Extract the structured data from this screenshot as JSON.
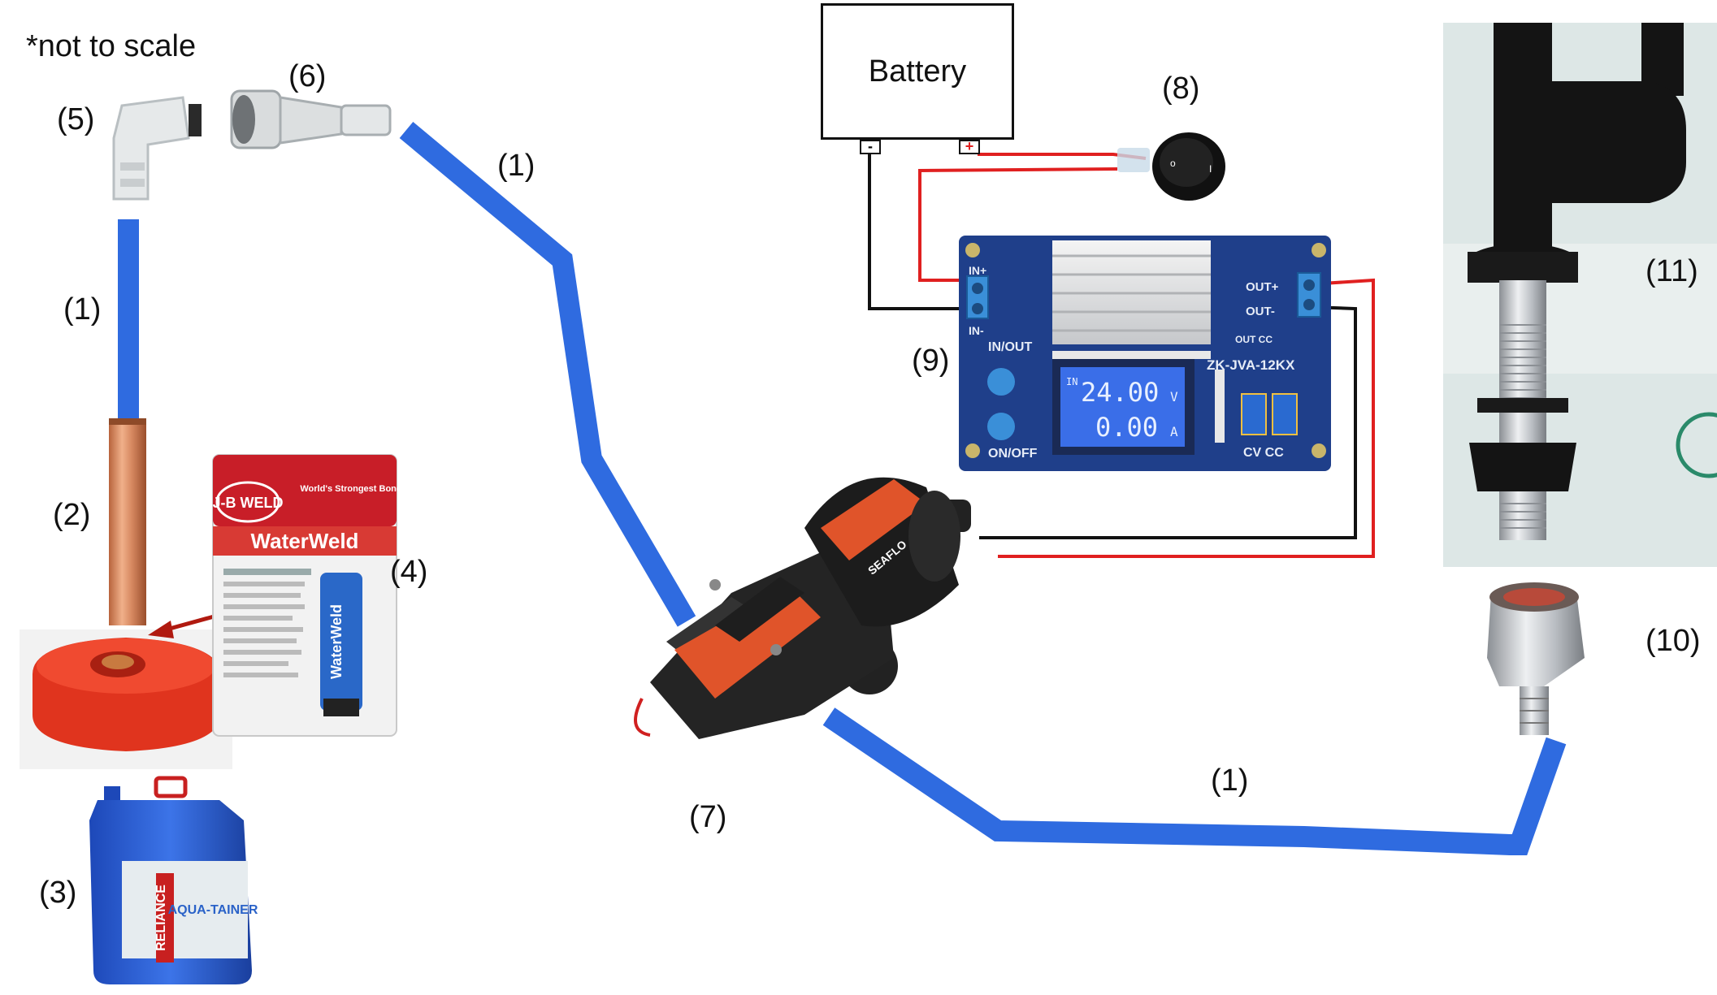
{
  "note": "*not to scale",
  "battery": {
    "label": "Battery",
    "neg_terminal": "-",
    "pos_terminal": "+"
  },
  "labels": {
    "tube_top_right": "(1)",
    "tube_left": "(1)",
    "tube_bottom": "(1)",
    "copper_pipe": "(2)",
    "water_container": "(3)",
    "epoxy": "(4)",
    "elbow_fitting": "(5)",
    "quick_connect": "(6)",
    "pump": "(7)",
    "switch": "(8)",
    "converter": "(9)",
    "faucet_adapter": "(10)",
    "faucet": "(11)"
  },
  "epoxy_package": {
    "brand": "J-B WELD",
    "product": "WaterWeld",
    "tagline": "World's Strongest Bond",
    "tube_text": "WaterWeld"
  },
  "container": {
    "brand": "RELIANCE",
    "product": "AQUA-TAINER"
  },
  "pump_brand": "SEAFLO",
  "converter": {
    "in_plus": "IN+",
    "in_minus": "IN-",
    "out_plus": "OUT+",
    "out_minus": "OUT-",
    "model": "ZK-JVA-12KX",
    "in_out": "IN/OUT",
    "on_off": "ON/OFF",
    "out_cc": "OUT\nCC",
    "cv_cc": "CV  CC",
    "display_in": "IN",
    "voltage": "24.00",
    "voltage_unit": "V",
    "current": "0.00",
    "current_unit": "A"
  },
  "colors": {
    "tube": "#2f6be0",
    "wire_red": "#e02020",
    "wire_black": "#111111",
    "arrow": "#b01a10",
    "pump_orange": "#e0542a",
    "pcb": "#1f3f8a",
    "faucet_black": "#141414"
  }
}
